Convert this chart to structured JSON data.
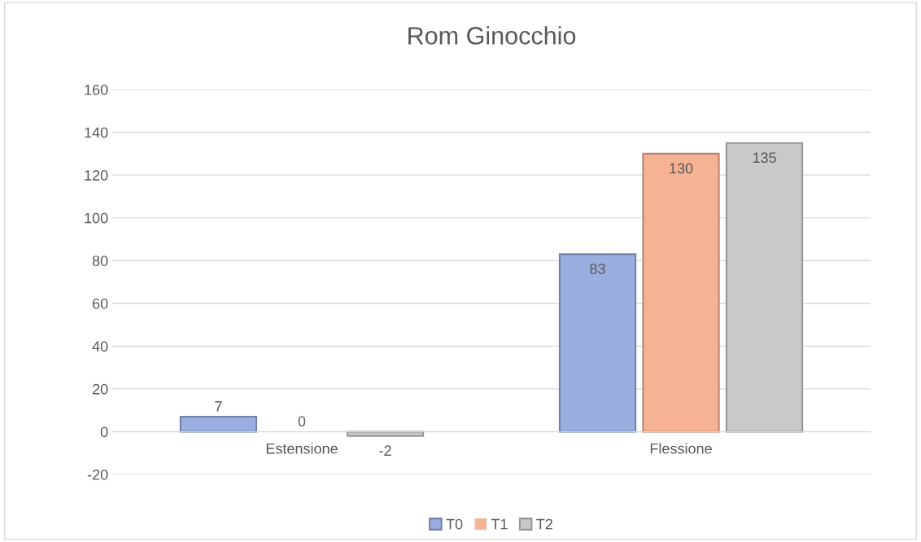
{
  "chart_data": {
    "type": "bar",
    "title": "Rom Ginocchio",
    "categories": [
      "Estensione",
      "Flessione"
    ],
    "series": [
      {
        "name": "T0",
        "color": "#9aafe0",
        "values": [
          7,
          83
        ]
      },
      {
        "name": "T1",
        "color": "#f5b394",
        "values": [
          0,
          130
        ]
      },
      {
        "name": "T2",
        "color": "#c9c9c9",
        "values": [
          -2,
          135
        ]
      }
    ],
    "ylim": [
      -20,
      160
    ],
    "yticks": [
      -20,
      0,
      20,
      40,
      60,
      80,
      100,
      120,
      140,
      160
    ],
    "grid": "y",
    "legend": "bottom",
    "data_labels": true
  }
}
